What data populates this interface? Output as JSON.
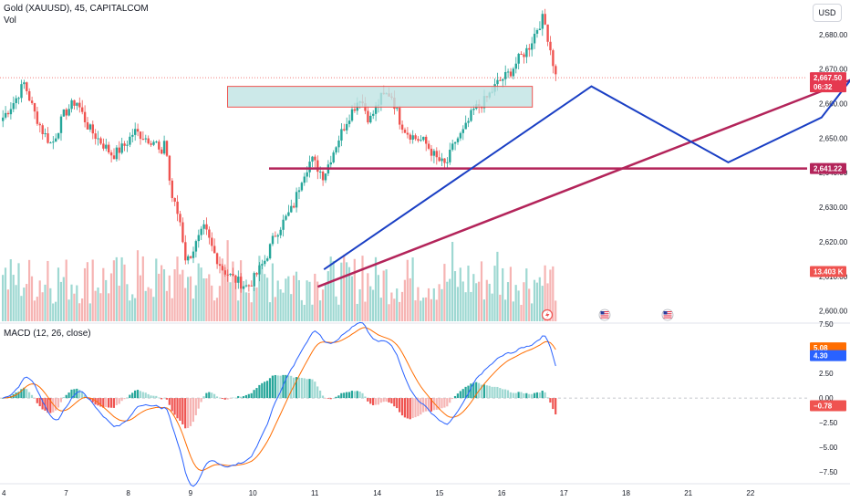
{
  "header": {
    "symbol_title": "Gold (XAUUSD), 45, CAPITALCOM",
    "volume_label": "Vol",
    "currency_button": "USD"
  },
  "macd_panel": {
    "title": "MACD (12, 26, close)"
  },
  "colors": {
    "bull": "#26a69a",
    "bear": "#ef5350",
    "bull_volume": "#9ed8d2",
    "bear_volume": "#f6b4b3",
    "macd_line": "#2962ff",
    "signal_line": "#ff6d00",
    "horizontal_level": "#b3245a",
    "trendline": "#b3245a",
    "pattern_line": "#1a3fc4",
    "zone_fill": "#bfe3e3",
    "zone_border": "#ef5350",
    "price_tag_red": "#e53950",
    "hline_tag": "#b3245a"
  },
  "icons": [
    "flash-icon",
    "us-flag-icon",
    "us-flag-icon"
  ],
  "chart_data": [
    {
      "type": "candlestick",
      "title": "Gold (XAUUSD), 45, CAPITALCOM",
      "xlabel": "",
      "ylabel": "",
      "x_ticks": [
        "4",
        "7",
        "8",
        "9",
        "10",
        "11",
        "14",
        "15",
        "16",
        "17",
        "18",
        "21",
        "22"
      ],
      "y_ticks": [
        "2,600.00",
        "2,610.00",
        "2,620.00",
        "2,630.00",
        "2,640.00",
        "2,650.00",
        "2,660.00",
        "2,670.00",
        "2,680.00"
      ],
      "ylim": [
        2597,
        2690
      ],
      "path_points": [
        [
          4.0,
          2656
        ],
        [
          4.2,
          2661
        ],
        [
          4.35,
          2666
        ],
        [
          4.5,
          2658
        ],
        [
          4.65,
          2652
        ],
        [
          4.8,
          2648
        ],
        [
          5.0,
          2657
        ],
        [
          5.2,
          2661
        ],
        [
          5.4,
          2653
        ],
        [
          5.6,
          2649
        ],
        [
          5.8,
          2645
        ],
        [
          6.0,
          2648
        ],
        [
          6.15,
          2652
        ],
        [
          6.35,
          2650
        ],
        [
          6.5,
          2649
        ],
        [
          6.6,
          2644
        ],
        [
          6.65,
          2651
        ],
        [
          6.75,
          2634
        ],
        [
          6.9,
          2626
        ],
        [
          7.0,
          2614
        ],
        [
          7.15,
          2619
        ],
        [
          7.3,
          2624
        ],
        [
          7.45,
          2617
        ],
        [
          7.6,
          2612
        ],
        [
          7.8,
          2609
        ],
        [
          8.0,
          2607
        ],
        [
          8.1,
          2609
        ],
        [
          8.3,
          2615
        ],
        [
          8.45,
          2622
        ],
        [
          8.6,
          2626
        ],
        [
          8.75,
          2630
        ],
        [
          8.9,
          2639
        ],
        [
          9.05,
          2644
        ],
        [
          9.25,
          2639
        ],
        [
          9.45,
          2648
        ],
        [
          9.65,
          2656
        ],
        [
          9.85,
          2662
        ],
        [
          10.0,
          2655
        ],
        [
          10.2,
          2662
        ],
        [
          10.35,
          2663
        ],
        [
          10.5,
          2655
        ],
        [
          10.6,
          2652
        ],
        [
          10.75,
          2650
        ],
        [
          10.9,
          2649
        ],
        [
          11.1,
          2644
        ],
        [
          11.25,
          2642
        ],
        [
          11.4,
          2649
        ],
        [
          11.55,
          2652
        ],
        [
          11.7,
          2658
        ],
        [
          11.9,
          2661
        ],
        [
          12.1,
          2666
        ],
        [
          12.3,
          2669
        ],
        [
          12.45,
          2673
        ],
        [
          12.6,
          2676
        ],
        [
          12.75,
          2682
        ],
        [
          12.85,
          2685
        ],
        [
          12.95,
          2677
        ],
        [
          13.05,
          2668
        ]
      ],
      "macd": {
        "ylim": [
          -8.5,
          7.5
        ],
        "y_ticks": [
          "−7.50",
          "−5.00",
          "−2.50",
          "0.00",
          "2.50",
          "5.00",
          "7.50"
        ],
        "macd_last": 4.3,
        "signal_last": 5.08,
        "histogram_last": -0.78
      },
      "annotations": {
        "horizontal_level": 2641.22,
        "zone": {
          "x": [
            7.6,
            12.5
          ],
          "y": [
            2659,
            2665
          ]
        },
        "trendline": {
          "from": [
            3.0,
            2607
          ],
          "to": [
            12.7,
            2672
          ]
        },
        "pattern": {
          "zigzag": [
            [
              3.5,
              2612
            ],
            [
              7.8,
              2665
            ],
            [
              10.0,
              2643
            ],
            [
              11.5,
              2656
            ],
            [
              12.7,
              2684
            ]
          ],
          "projection": [
            [
              12.7,
              2684
            ],
            [
              13.4,
              2663
            ],
            [
              13.9,
              2674
            ],
            [
              14.3,
              2665
            ],
            [
              14.6,
              2666
            ]
          ]
        }
      },
      "price_labels": [
        {
          "text": "2,667.50",
          "sub": "06:32",
          "price": 2667.5,
          "kind": "last"
        },
        {
          "text": "2,641.22",
          "price": 2641.22,
          "kind": "hline"
        },
        {
          "text": "13.403 K",
          "price": 2611.4,
          "kind": "volume"
        },
        {
          "text": "5.08",
          "price": 5.08,
          "kind": "signal"
        },
        {
          "text": "4.30",
          "price": 4.3,
          "kind": "macd"
        },
        {
          "text": "−0.78",
          "price": -0.78,
          "kind": "hist"
        }
      ]
    }
  ]
}
